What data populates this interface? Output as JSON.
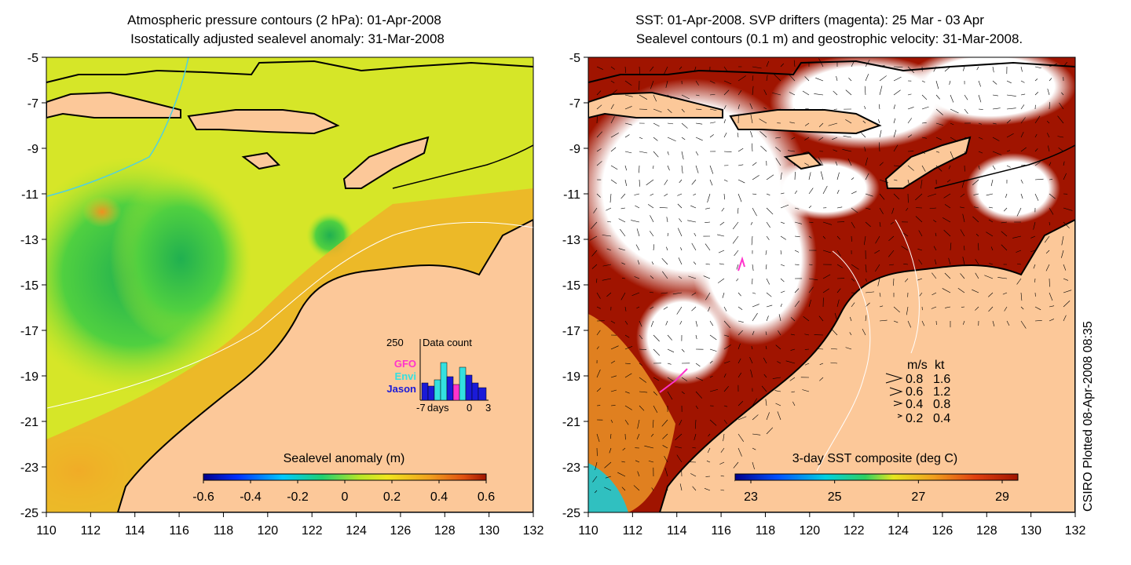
{
  "left_panel": {
    "title_line1": "Atmospheric pressure contours (2 hPa): 01-Apr-2008",
    "title_line2": "Isostatically adjusted sealevel anomaly: 31-Mar-2008",
    "colorbar_label": "Sealevel anomaly (m)",
    "colorbar_ticks": [
      "-0.6",
      "-0.4",
      "-0.2",
      "0",
      "0.2",
      "0.4",
      "0.6"
    ],
    "inset": {
      "y_label": "250",
      "title": "Data count",
      "legend": [
        {
          "name": "GFO",
          "color": "#ff33cc"
        },
        {
          "name": "Envi",
          "color": "#33e0e0"
        },
        {
          "name": "Jason",
          "color": "#1a1ad8"
        }
      ],
      "x_ticks": [
        "-7",
        "days",
        "0",
        "3"
      ]
    }
  },
  "right_panel": {
    "title_line1": "SST: 01-Apr-2008. SVP drifters (magenta): 25 Mar - 03 Apr",
    "title_line2": "Sealevel contours (0.1 m) and geostrophic velocity: 31-Mar-2008.",
    "colorbar_label": "3-day SST composite (deg C)",
    "colorbar_ticks": [
      "23",
      "25",
      "27",
      "29"
    ],
    "speed_legend": {
      "header_ms": "m/s",
      "header_kt": "kt",
      "rows": [
        {
          "ms": "0.8",
          "kt": "1.6"
        },
        {
          "ms": "0.6",
          "kt": "1.2"
        },
        {
          "ms": "0.4",
          "kt": "0.8"
        },
        {
          "ms": "0.2",
          "kt": "0.4"
        }
      ]
    }
  },
  "axes": {
    "y_ticks": [
      "-5",
      "-7",
      "-9",
      "-11",
      "-13",
      "-15",
      "-17",
      "-19",
      "-21",
      "-23",
      "-25"
    ],
    "x_ticks": [
      "110",
      "112",
      "114",
      "116",
      "118",
      "120",
      "122",
      "124",
      "126",
      "128",
      "130",
      "132"
    ]
  },
  "credit": "CSIRO Plotted 08-Apr-2008 08:35",
  "colors": {
    "land": "#fcc899",
    "coast": "#000000",
    "sst_hot": "#a01400",
    "sla_green": "#3cc83c",
    "sla_yellow": "#e6e61e",
    "sla_orange": "#f0a01e"
  }
}
